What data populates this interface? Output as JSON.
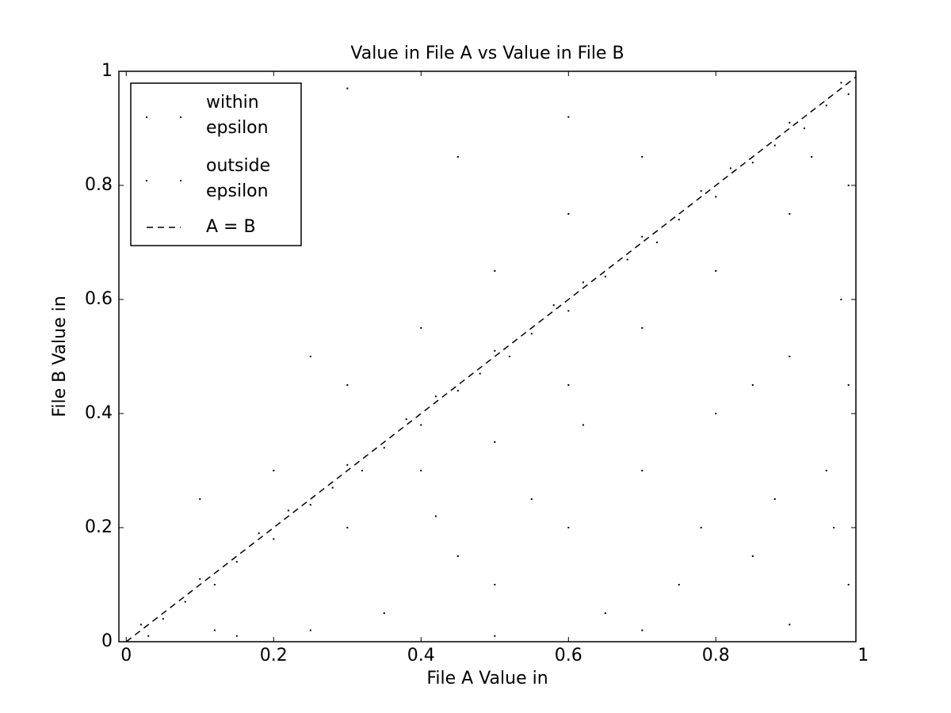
{
  "chart_data": {
    "type": "scatter",
    "title": "Value in File A vs Value in File B",
    "xlabel": "File A Value in",
    "ylabel": "File B Value in",
    "xlim": [
      -0.01,
      0.99
    ],
    "ylim": [
      0,
      1
    ],
    "xticks": [
      0,
      0.2,
      0.4,
      0.6,
      0.8,
      1
    ],
    "yticks": [
      0,
      0.2,
      0.4,
      0.6,
      0.8,
      1
    ],
    "legend": "upper left",
    "series": [
      {
        "name": "within epsilon",
        "color": "#000000",
        "marker": "point",
        "x": [
          0.02,
          0.05,
          0.08,
          0.1,
          0.12,
          0.15,
          0.18,
          0.2,
          0.22,
          0.25,
          0.28,
          0.3,
          0.32,
          0.35,
          0.38,
          0.4,
          0.42,
          0.45,
          0.48,
          0.5,
          0.52,
          0.55,
          0.58,
          0.6,
          0.62,
          0.65,
          0.68,
          0.7,
          0.72,
          0.75,
          0.78,
          0.8,
          0.82,
          0.85,
          0.88,
          0.9,
          0.92,
          0.95,
          0.97,
          0.98
        ],
        "values": [
          0.03,
          0.04,
          0.07,
          0.11,
          0.1,
          0.14,
          0.19,
          0.18,
          0.23,
          0.24,
          0.27,
          0.31,
          0.3,
          0.34,
          0.39,
          0.38,
          0.43,
          0.44,
          0.47,
          0.51,
          0.5,
          0.54,
          0.59,
          0.58,
          0.63,
          0.64,
          0.67,
          0.71,
          0.7,
          0.74,
          0.79,
          0.78,
          0.83,
          0.84,
          0.87,
          0.91,
          0.9,
          0.94,
          0.98,
          0.96
        ]
      },
      {
        "name": "outside epsilon",
        "color": "#000000",
        "marker": "point",
        "x": [
          0.3,
          0.4,
          0.5,
          0.6,
          0.7,
          0.8,
          0.9,
          0.5,
          0.6,
          0.7,
          0.8,
          0.9,
          0.95,
          0.97,
          0.98,
          0.96,
          0.85,
          0.75,
          0.65,
          0.55,
          0.45,
          0.35,
          0.25,
          0.15,
          0.5,
          0.7,
          0.9,
          0.2,
          0.3,
          0.4,
          0.5,
          0.6,
          0.7,
          0.1,
          0.25,
          0.45,
          0.3,
          0.6,
          0.85,
          0.88,
          0.93,
          0.78,
          0.62,
          0.42,
          0.12,
          0.03,
          0.98,
          0.98
        ],
        "values": [
          0.2,
          0.3,
          0.35,
          0.45,
          0.55,
          0.65,
          0.75,
          0.1,
          0.2,
          0.3,
          0.4,
          0.5,
          0.3,
          0.6,
          0.1,
          0.2,
          0.15,
          0.1,
          0.05,
          0.25,
          0.15,
          0.05,
          0.02,
          0.01,
          0.01,
          0.02,
          0.03,
          0.3,
          0.45,
          0.55,
          0.65,
          0.75,
          0.85,
          0.25,
          0.5,
          0.85,
          0.97,
          0.92,
          0.45,
          0.25,
          0.85,
          0.2,
          0.38,
          0.22,
          0.02,
          0.01,
          0.8,
          0.45
        ]
      },
      {
        "name": "A = B",
        "color": "#000000",
        "marker": "dashed-line",
        "x": [
          0,
          1
        ],
        "values": [
          0,
          1
        ]
      }
    ]
  }
}
